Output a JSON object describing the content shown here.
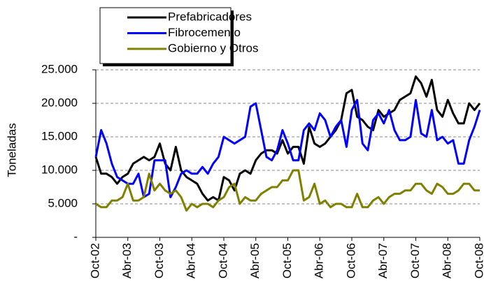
{
  "chart_data": {
    "type": "line",
    "y_label": "Toneladas",
    "categories": [
      "Oct-02",
      null,
      null,
      null,
      null,
      null,
      "Abr-03",
      null,
      null,
      null,
      null,
      null,
      "Oct-03",
      null,
      null,
      null,
      null,
      null,
      "Abr-04",
      null,
      null,
      null,
      null,
      null,
      "Oct-04",
      null,
      null,
      null,
      null,
      null,
      "Abr-05",
      null,
      null,
      null,
      null,
      null,
      "Oct-05",
      null,
      null,
      null,
      null,
      null,
      "Abr-06",
      null,
      null,
      null,
      null,
      null,
      "Oct-06",
      null,
      null,
      null,
      null,
      null,
      "Abr-07",
      null,
      null,
      null,
      null,
      null,
      "Oct-07",
      null,
      null,
      null,
      null,
      null,
      "Abr-08",
      null,
      null,
      null,
      null,
      null,
      "Oct-08"
    ],
    "series": [
      {
        "name": "Prefabricadores",
        "color": "#000000",
        "values": [
          12000,
          9500,
          9500,
          9000,
          8000,
          9000,
          9500,
          11000,
          11500,
          12000,
          11500,
          12000,
          14000,
          11000,
          10000,
          13500,
          10000,
          9000,
          8500,
          8000,
          6500,
          5500,
          6000,
          5500,
          9000,
          8500,
          7000,
          9500,
          10000,
          9500,
          11500,
          12500,
          13000,
          13000,
          12500,
          14500,
          12500,
          13500,
          13500,
          11000,
          16500,
          14000,
          13500,
          14000,
          15000,
          16000,
          17500,
          21500,
          22000,
          18000,
          17500,
          16500,
          16000,
          19000,
          18000,
          18500,
          19000,
          20500,
          21000,
          21500,
          24000,
          23000,
          21000,
          23500,
          19000,
          18000,
          20500,
          18500,
          17000,
          17000,
          20000,
          19000,
          20000
        ]
      },
      {
        "name": "Fibrocemento",
        "color": "#0000ff",
        "values": [
          12000,
          16000,
          14000,
          11000,
          9000,
          8500,
          8000,
          8000,
          9500,
          6000,
          6500,
          11500,
          11500,
          11500,
          6000,
          7500,
          9500,
          10000,
          9500,
          9500,
          10500,
          9500,
          11000,
          12000,
          15000,
          14500,
          14000,
          14500,
          15000,
          19500,
          20000,
          16000,
          12000,
          11500,
          13000,
          16000,
          14000,
          11500,
          11500,
          16000,
          17000,
          16000,
          18500,
          17500,
          15000,
          16500,
          17500,
          13500,
          19000,
          20500,
          14000,
          13000,
          17500,
          18500,
          17000,
          19000,
          16000,
          14500,
          14500,
          15000,
          20500,
          15500,
          15000,
          19000,
          14500,
          15000,
          14000,
          14500,
          11000,
          11000,
          14500,
          16500,
          19000
        ]
      },
      {
        "name": "Gobierno y Otros",
        "color": "#808000",
        "values": [
          5000,
          4500,
          4500,
          5500,
          5500,
          6000,
          8000,
          5500,
          5500,
          6000,
          9500,
          7000,
          8000,
          7000,
          6500,
          7000,
          6000,
          4000,
          5000,
          4500,
          5000,
          5000,
          4500,
          5500,
          6000,
          7500,
          8000,
          5000,
          6000,
          5500,
          5500,
          6500,
          7000,
          7500,
          7500,
          8500,
          8500,
          10000,
          10000,
          5500,
          6000,
          8000,
          5000,
          5500,
          4500,
          5000,
          5000,
          4500,
          4500,
          6500,
          4500,
          4500,
          5500,
          6000,
          5000,
          6000,
          6500,
          6500,
          7000,
          7000,
          8000,
          8000,
          7000,
          6500,
          8000,
          7500,
          6500,
          6500,
          7000,
          8000,
          8000,
          7000,
          7000
        ]
      }
    ],
    "ylim": [
      0,
      25000
    ],
    "yticks": [
      {
        "value": 0,
        "label": "-"
      },
      {
        "value": 5000,
        "label": "5.000"
      },
      {
        "value": 10000,
        "label": "10.000"
      },
      {
        "value": 15000,
        "label": "15.000"
      },
      {
        "value": 20000,
        "label": "20.000"
      },
      {
        "value": 25000,
        "label": "25.000"
      }
    ],
    "grid": true
  }
}
